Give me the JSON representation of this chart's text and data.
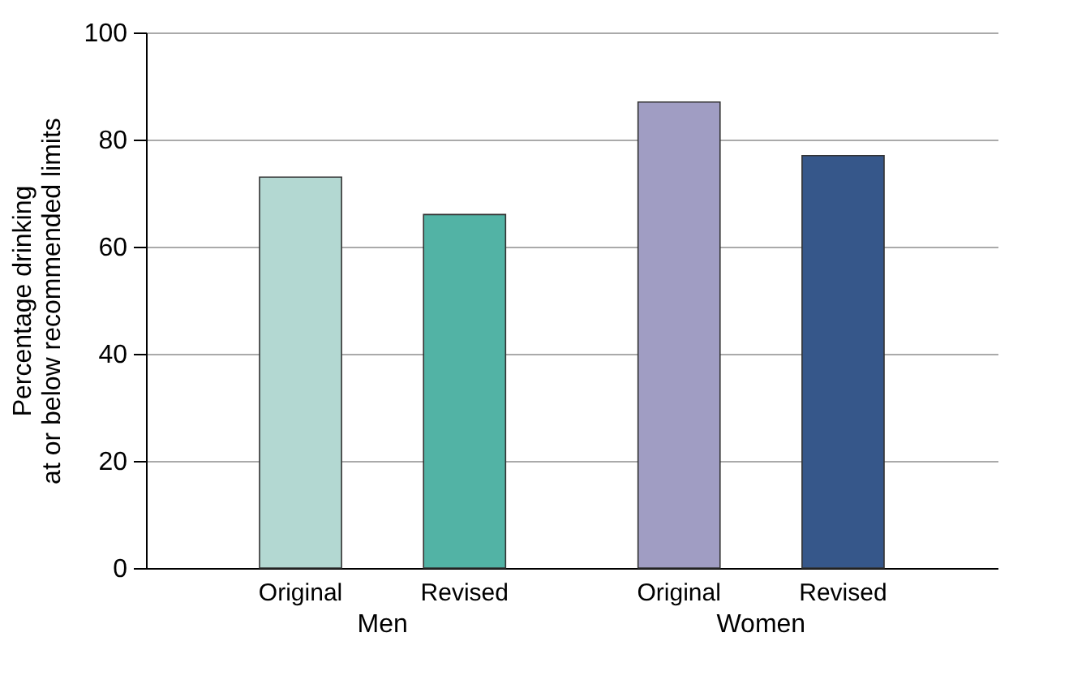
{
  "chart_data": {
    "type": "bar",
    "categories": [
      "Men",
      "Women"
    ],
    "series": [
      {
        "name": "Original",
        "colors": [
          "#b3d8d2",
          "#a09dc3"
        ],
        "values": [
          73,
          87
        ]
      },
      {
        "name": "Revised",
        "colors": [
          "#52b3a5",
          "#36578a"
        ],
        "values": [
          66,
          77
        ]
      }
    ],
    "ylabel": "Percentage drinking\nat or below recommended limits",
    "ylim": [
      0,
      100
    ],
    "yticks": [
      0,
      20,
      40,
      60,
      80,
      100
    ],
    "grid": "y",
    "legend": false
  }
}
